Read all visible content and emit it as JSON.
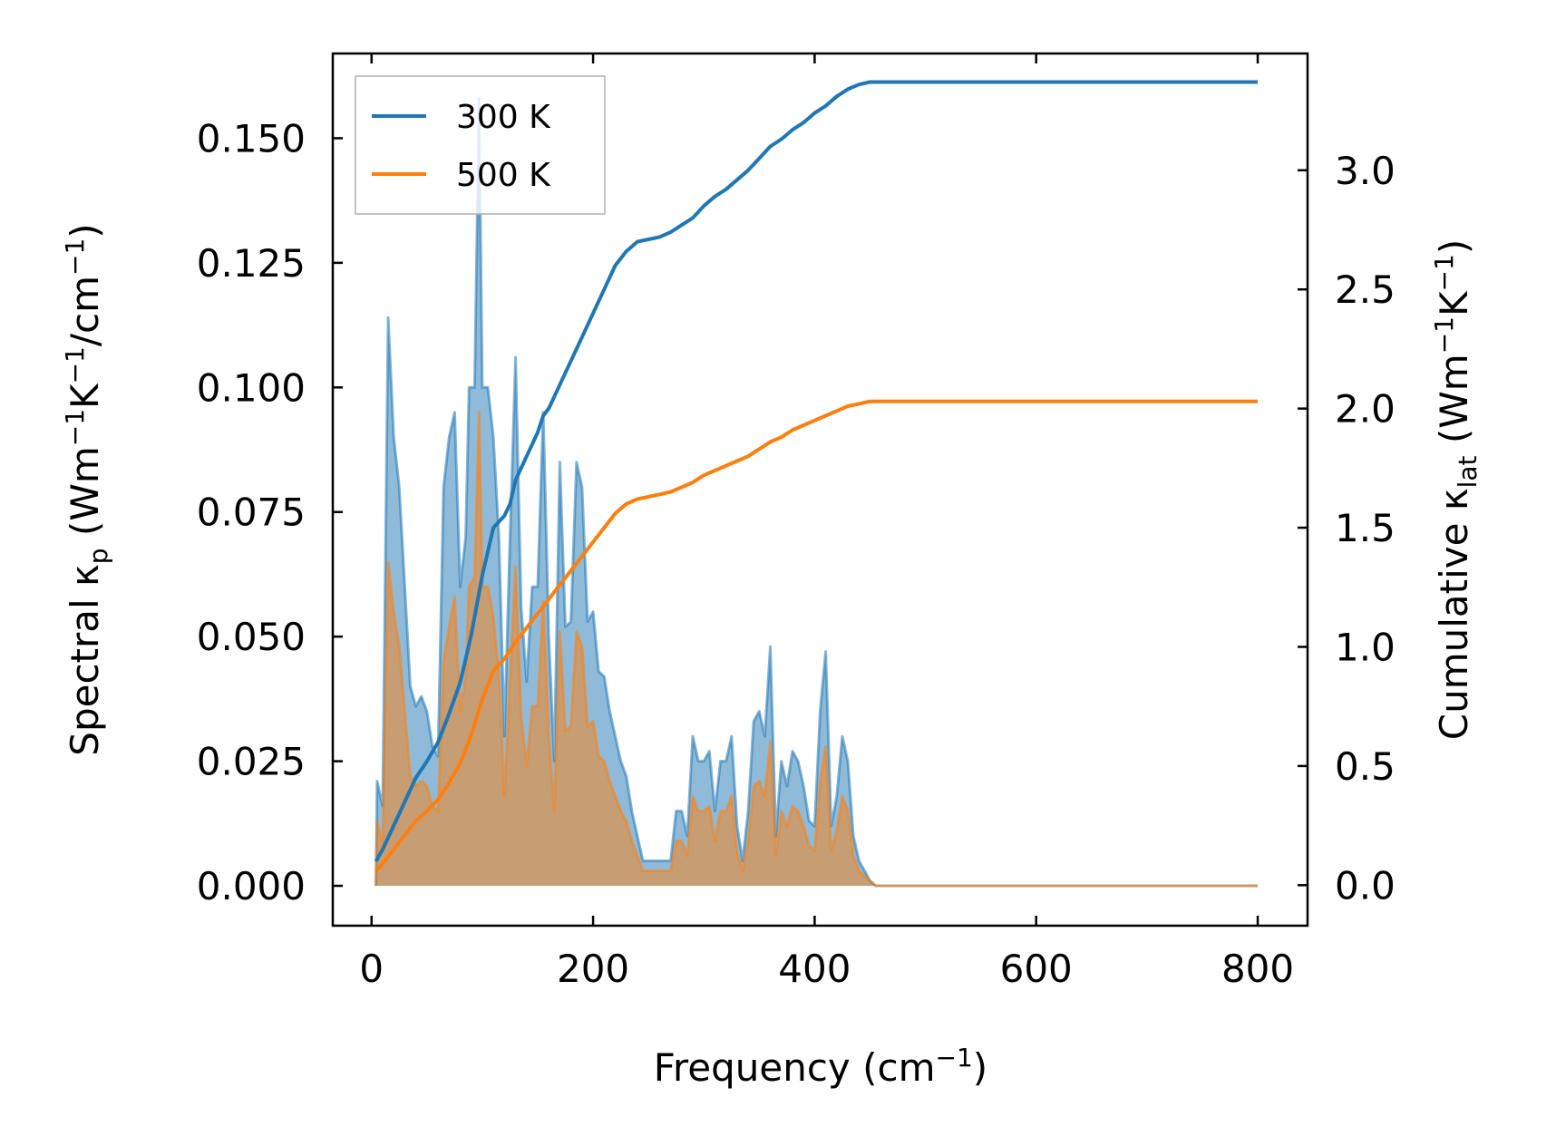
{
  "chart_data": {
    "type": "line",
    "xlabel": {
      "main": "Frequency (cm",
      "sup": "−1",
      "tail": ")"
    },
    "ylabel_left": {
      "a": "Spectral κ",
      "sub": "p",
      "b": " (Wm",
      "sup1": "−1",
      "c": "K",
      "sup2": "−1",
      "d": "/cm",
      "sup3": "−1",
      "e": ")"
    },
    "ylabel_right": {
      "a": "Cumulative κ",
      "sub": "lat",
      "b": " (Wm",
      "sup1": "−1",
      "c": "K",
      "sup2": "−1",
      "d": ")"
    },
    "xlim": [
      -35,
      845
    ],
    "ylim_left": [
      -0.008,
      0.167
    ],
    "ylim_right": [
      -0.17,
      3.49
    ],
    "xticks": [
      0,
      200,
      400,
      600,
      800
    ],
    "xtick_labels": [
      "0",
      "200",
      "400",
      "600",
      "800"
    ],
    "yticks_left": [
      0,
      0.025,
      0.05,
      0.075,
      0.1,
      0.125,
      0.15
    ],
    "ytick_labels_left": [
      "0.000",
      "0.025",
      "0.050",
      "0.075",
      "0.100",
      "0.125",
      "0.150"
    ],
    "yticks_right": [
      0,
      0.5,
      1.0,
      1.5,
      2.0,
      2.5,
      3.0
    ],
    "ytick_labels_right": [
      "0.0",
      "0.5",
      "1.0",
      "1.5",
      "2.0",
      "2.5",
      "3.0"
    ],
    "legend_position": "upper-left",
    "series": [
      {
        "name": "300 K",
        "color": "#1f77b4",
        "spectral": [
          [
            4,
            0
          ],
          [
            5,
            0.021
          ],
          [
            10,
            0.016
          ],
          [
            15,
            0.114
          ],
          [
            20,
            0.09
          ],
          [
            25,
            0.08
          ],
          [
            30,
            0.06
          ],
          [
            35,
            0.04
          ],
          [
            40,
            0.036
          ],
          [
            45,
            0.038
          ],
          [
            50,
            0.035
          ],
          [
            55,
            0.028
          ],
          [
            60,
            0.026
          ],
          [
            65,
            0.08
          ],
          [
            70,
            0.09
          ],
          [
            75,
            0.095
          ],
          [
            80,
            0.06
          ],
          [
            85,
            0.07
          ],
          [
            88,
            0.1
          ],
          [
            93,
            0.1
          ],
          [
            97,
            0.158
          ],
          [
            100,
            0.1
          ],
          [
            105,
            0.1
          ],
          [
            110,
            0.09
          ],
          [
            115,
            0.07
          ],
          [
            120,
            0.03
          ],
          [
            125,
            0.07
          ],
          [
            130,
            0.106
          ],
          [
            135,
            0.056
          ],
          [
            140,
            0.041
          ],
          [
            145,
            0.06
          ],
          [
            150,
            0.06
          ],
          [
            155,
            0.095
          ],
          [
            160,
            0.05
          ],
          [
            165,
            0.025
          ],
          [
            170,
            0.085
          ],
          [
            175,
            0.052
          ],
          [
            180,
            0.053
          ],
          [
            185,
            0.085
          ],
          [
            190,
            0.08
          ],
          [
            195,
            0.053
          ],
          [
            200,
            0.055
          ],
          [
            205,
            0.043
          ],
          [
            210,
            0.042
          ],
          [
            215,
            0.035
          ],
          [
            220,
            0.03
          ],
          [
            225,
            0.025
          ],
          [
            230,
            0.022
          ],
          [
            235,
            0.015
          ],
          [
            240,
            0.01
          ],
          [
            245,
            0.005
          ],
          [
            250,
            0.005
          ],
          [
            255,
            0.005
          ],
          [
            260,
            0.005
          ],
          [
            265,
            0.005
          ],
          [
            270,
            0.005
          ],
          [
            275,
            0.015
          ],
          [
            280,
            0.015
          ],
          [
            285,
            0.01
          ],
          [
            290,
            0.03
          ],
          [
            295,
            0.025
          ],
          [
            300,
            0.025
          ],
          [
            305,
            0.027
          ],
          [
            310,
            0.015
          ],
          [
            315,
            0.025
          ],
          [
            320,
            0.025
          ],
          [
            325,
            0.03
          ],
          [
            330,
            0.012
          ],
          [
            335,
            0.005
          ],
          [
            340,
            0.015
          ],
          [
            345,
            0.033
          ],
          [
            350,
            0.035
          ],
          [
            355,
            0.03
          ],
          [
            360,
            0.048
          ],
          [
            365,
            0.01
          ],
          [
            370,
            0.025
          ],
          [
            375,
            0.02
          ],
          [
            380,
            0.027
          ],
          [
            385,
            0.025
          ],
          [
            390,
            0.02
          ],
          [
            395,
            0.013
          ],
          [
            400,
            0.012
          ],
          [
            405,
            0.035
          ],
          [
            410,
            0.047
          ],
          [
            415,
            0.012
          ],
          [
            420,
            0.018
          ],
          [
            425,
            0.03
          ],
          [
            430,
            0.025
          ],
          [
            435,
            0.01
          ],
          [
            440,
            0.005
          ],
          [
            445,
            0.003
          ],
          [
            450,
            0.001
          ],
          [
            455,
            0
          ],
          [
            800,
            0
          ]
        ],
        "cumulative": [
          [
            4,
            0.1
          ],
          [
            10,
            0.15
          ],
          [
            20,
            0.25
          ],
          [
            30,
            0.35
          ],
          [
            40,
            0.45
          ],
          [
            50,
            0.52
          ],
          [
            60,
            0.6
          ],
          [
            70,
            0.72
          ],
          [
            80,
            0.85
          ],
          [
            90,
            1.05
          ],
          [
            100,
            1.3
          ],
          [
            110,
            1.5
          ],
          [
            120,
            1.55
          ],
          [
            125,
            1.6
          ],
          [
            130,
            1.7
          ],
          [
            140,
            1.8
          ],
          [
            145,
            1.85
          ],
          [
            150,
            1.9
          ],
          [
            155,
            1.97
          ],
          [
            160,
            2.0
          ],
          [
            165,
            2.05
          ],
          [
            170,
            2.1
          ],
          [
            175,
            2.15
          ],
          [
            180,
            2.2
          ],
          [
            185,
            2.25
          ],
          [
            190,
            2.3
          ],
          [
            200,
            2.4
          ],
          [
            210,
            2.5
          ],
          [
            220,
            2.6
          ],
          [
            230,
            2.66
          ],
          [
            240,
            2.7
          ],
          [
            250,
            2.71
          ],
          [
            260,
            2.72
          ],
          [
            270,
            2.74
          ],
          [
            280,
            2.77
          ],
          [
            290,
            2.8
          ],
          [
            300,
            2.85
          ],
          [
            310,
            2.89
          ],
          [
            320,
            2.92
          ],
          [
            330,
            2.96
          ],
          [
            340,
            3.0
          ],
          [
            350,
            3.05
          ],
          [
            360,
            3.1
          ],
          [
            370,
            3.13
          ],
          [
            380,
            3.17
          ],
          [
            390,
            3.2
          ],
          [
            400,
            3.24
          ],
          [
            410,
            3.27
          ],
          [
            420,
            3.31
          ],
          [
            430,
            3.34
          ],
          [
            440,
            3.36
          ],
          [
            450,
            3.37
          ],
          [
            800,
            3.37
          ]
        ]
      },
      {
        "name": "500 K",
        "color": "#ff7f0e",
        "spectral": [
          [
            4,
            0
          ],
          [
            5,
            0.013
          ],
          [
            10,
            0.008
          ],
          [
            15,
            0.065
          ],
          [
            20,
            0.055
          ],
          [
            25,
            0.048
          ],
          [
            30,
            0.035
          ],
          [
            35,
            0.022
          ],
          [
            40,
            0.02
          ],
          [
            45,
            0.021
          ],
          [
            50,
            0.02
          ],
          [
            55,
            0.016
          ],
          [
            60,
            0.015
          ],
          [
            65,
            0.045
          ],
          [
            70,
            0.052
          ],
          [
            75,
            0.058
          ],
          [
            80,
            0.035
          ],
          [
            85,
            0.042
          ],
          [
            88,
            0.06
          ],
          [
            93,
            0.062
          ],
          [
            97,
            0.095
          ],
          [
            100,
            0.06
          ],
          [
            105,
            0.06
          ],
          [
            110,
            0.054
          ],
          [
            115,
            0.042
          ],
          [
            120,
            0.018
          ],
          [
            125,
            0.042
          ],
          [
            130,
            0.064
          ],
          [
            135,
            0.034
          ],
          [
            140,
            0.024
          ],
          [
            145,
            0.036
          ],
          [
            150,
            0.036
          ],
          [
            155,
            0.057
          ],
          [
            160,
            0.03
          ],
          [
            165,
            0.015
          ],
          [
            170,
            0.051
          ],
          [
            175,
            0.031
          ],
          [
            180,
            0.032
          ],
          [
            185,
            0.051
          ],
          [
            190,
            0.048
          ],
          [
            195,
            0.032
          ],
          [
            200,
            0.033
          ],
          [
            205,
            0.026
          ],
          [
            210,
            0.025
          ],
          [
            215,
            0.021
          ],
          [
            220,
            0.018
          ],
          [
            225,
            0.015
          ],
          [
            230,
            0.013
          ],
          [
            235,
            0.009
          ],
          [
            240,
            0.006
          ],
          [
            245,
            0.003
          ],
          [
            250,
            0.003
          ],
          [
            255,
            0.003
          ],
          [
            260,
            0.003
          ],
          [
            265,
            0.003
          ],
          [
            270,
            0.003
          ],
          [
            275,
            0.009
          ],
          [
            280,
            0.009
          ],
          [
            285,
            0.006
          ],
          [
            290,
            0.018
          ],
          [
            295,
            0.015
          ],
          [
            300,
            0.015
          ],
          [
            305,
            0.016
          ],
          [
            310,
            0.009
          ],
          [
            315,
            0.015
          ],
          [
            320,
            0.015
          ],
          [
            325,
            0.018
          ],
          [
            330,
            0.007
          ],
          [
            335,
            0.003
          ],
          [
            340,
            0.009
          ],
          [
            345,
            0.02
          ],
          [
            350,
            0.021
          ],
          [
            355,
            0.018
          ],
          [
            360,
            0.029
          ],
          [
            365,
            0.006
          ],
          [
            370,
            0.015
          ],
          [
            375,
            0.012
          ],
          [
            380,
            0.016
          ],
          [
            385,
            0.015
          ],
          [
            390,
            0.012
          ],
          [
            395,
            0.008
          ],
          [
            400,
            0.007
          ],
          [
            405,
            0.021
          ],
          [
            410,
            0.028
          ],
          [
            415,
            0.007
          ],
          [
            420,
            0.011
          ],
          [
            425,
            0.018
          ],
          [
            430,
            0.015
          ],
          [
            435,
            0.006
          ],
          [
            440,
            0.003
          ],
          [
            445,
            0.002
          ],
          [
            450,
            0.001
          ],
          [
            455,
            0
          ],
          [
            800,
            0
          ]
        ],
        "cumulative": [
          [
            4,
            0.06
          ],
          [
            10,
            0.09
          ],
          [
            20,
            0.15
          ],
          [
            30,
            0.21
          ],
          [
            40,
            0.27
          ],
          [
            50,
            0.31
          ],
          [
            60,
            0.36
          ],
          [
            70,
            0.43
          ],
          [
            80,
            0.51
          ],
          [
            90,
            0.63
          ],
          [
            100,
            0.78
          ],
          [
            110,
            0.9
          ],
          [
            120,
            0.95
          ],
          [
            130,
            1.02
          ],
          [
            140,
            1.08
          ],
          [
            150,
            1.14
          ],
          [
            160,
            1.2
          ],
          [
            170,
            1.26
          ],
          [
            180,
            1.32
          ],
          [
            190,
            1.38
          ],
          [
            200,
            1.44
          ],
          [
            210,
            1.5
          ],
          [
            220,
            1.56
          ],
          [
            230,
            1.6
          ],
          [
            240,
            1.62
          ],
          [
            250,
            1.63
          ],
          [
            260,
            1.64
          ],
          [
            270,
            1.65
          ],
          [
            280,
            1.67
          ],
          [
            290,
            1.69
          ],
          [
            300,
            1.72
          ],
          [
            310,
            1.74
          ],
          [
            320,
            1.76
          ],
          [
            330,
            1.78
          ],
          [
            340,
            1.8
          ],
          [
            350,
            1.83
          ],
          [
            360,
            1.86
          ],
          [
            370,
            1.88
          ],
          [
            380,
            1.91
          ],
          [
            390,
            1.93
          ],
          [
            400,
            1.95
          ],
          [
            410,
            1.97
          ],
          [
            420,
            1.99
          ],
          [
            430,
            2.01
          ],
          [
            440,
            2.02
          ],
          [
            450,
            2.03
          ],
          [
            800,
            2.03
          ]
        ]
      }
    ]
  }
}
